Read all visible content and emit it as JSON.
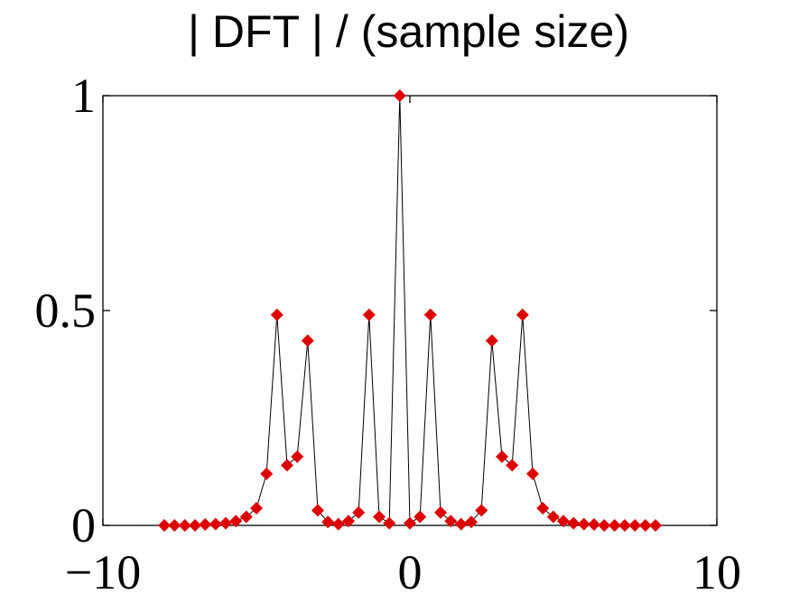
{
  "chart_data": {
    "type": "line",
    "title": "| DFT | / (sample size)",
    "xlabel": "",
    "ylabel": "",
    "xlim": [
      -10,
      10
    ],
    "ylim": [
      0,
      1
    ],
    "x_ticks": [
      -10,
      0,
      10
    ],
    "x_tick_labels": [
      "−10",
      "0",
      "10"
    ],
    "y_ticks": [
      0,
      0.5,
      1
    ],
    "y_tick_labels": [
      "0",
      "0.5",
      "1"
    ],
    "grid": false,
    "colors": {
      "line": "#000000",
      "marker": "#dd0000",
      "axes": "#000000"
    },
    "marker": "diamond",
    "series": [
      {
        "x": [
          -8.0,
          -7.67,
          -7.33,
          -7.0,
          -6.67,
          -6.33,
          -6.0,
          -5.67,
          -5.33,
          -5.0,
          -4.67,
          -4.33,
          -4.0,
          -3.67,
          -3.33,
          -3.0,
          -2.67,
          -2.33,
          -2.0,
          -1.67,
          -1.33,
          -1.0,
          -0.67,
          -0.33,
          0.0,
          0.33,
          0.67,
          1.0,
          1.33,
          1.67,
          2.0,
          2.33,
          2.67,
          3.0,
          3.33,
          3.67,
          4.0,
          4.33,
          4.67,
          5.0,
          5.33,
          5.67,
          6.0,
          6.33,
          6.67,
          7.0,
          7.33,
          7.67,
          8.0
        ],
        "y": [
          0.0,
          0.0,
          0.0,
          0.0,
          0.002,
          0.003,
          0.005,
          0.01,
          0.02,
          0.04,
          0.12,
          0.49,
          0.14,
          0.16,
          0.43,
          0.035,
          0.008,
          0.003,
          0.01,
          0.03,
          0.49,
          0.02,
          0.005,
          1.0,
          0.005,
          0.02,
          0.49,
          0.03,
          0.01,
          0.003,
          0.008,
          0.035,
          0.43,
          0.16,
          0.14,
          0.49,
          0.12,
          0.04,
          0.02,
          0.01,
          0.005,
          0.003,
          0.002,
          0.0,
          0.0,
          0.0,
          0.0,
          0.0,
          0.0
        ]
      }
    ]
  }
}
